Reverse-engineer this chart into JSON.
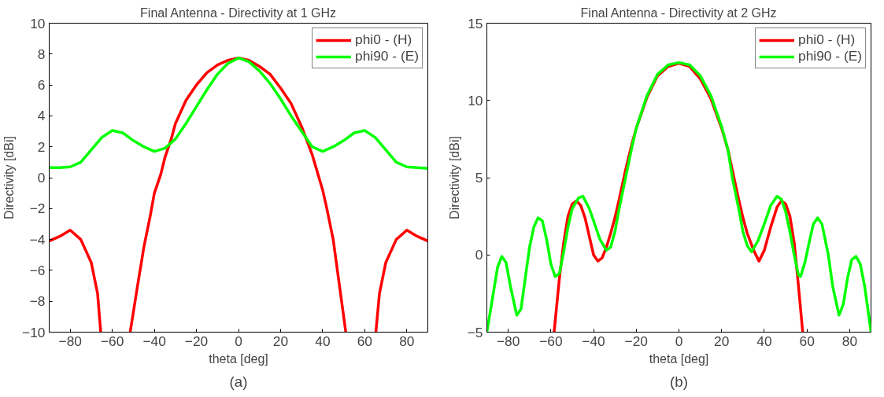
{
  "chart_data": [
    {
      "type": "line",
      "title": "Final Antenna - Directivity at 1 GHz",
      "xlabel": "theta [deg]",
      "ylabel": "Directivity [dBi]",
      "annotations": [
        "(a)"
      ],
      "xlim": [
        -90,
        90
      ],
      "xticks": [
        -80,
        -60,
        -40,
        -20,
        0,
        20,
        40,
        60,
        80
      ],
      "ylim": [
        -10,
        10
      ],
      "yticks": [
        -10,
        -8,
        -6,
        -4,
        -2,
        0,
        2,
        4,
        6,
        8,
        10
      ],
      "legend": "top right",
      "grid": false,
      "line_style": "solid",
      "marker": "none",
      "series": [
        {
          "name": "phi0 - (H)",
          "color": "#ff0000",
          "x": [
            -90,
            -85,
            -80,
            -75,
            -70,
            -67,
            -65.5,
            -60,
            -51.5,
            -48,
            -45,
            -42,
            -40,
            -37,
            -35,
            -32,
            -30,
            -25,
            -20,
            -15,
            -10,
            -5,
            0,
            5,
            10,
            15,
            20,
            25,
            30,
            35,
            40,
            42,
            45,
            48,
            51,
            60,
            65.3,
            67,
            70,
            75,
            80,
            85,
            90
          ],
          "values": [
            -4.1,
            -3.8,
            -3.4,
            -4.0,
            -5.5,
            -7.5,
            -10,
            null,
            -10,
            -7,
            -4.5,
            -2.5,
            -1.0,
            0.2,
            1.3,
            2.5,
            3.5,
            5.0,
            6.0,
            6.8,
            7.3,
            7.6,
            7.75,
            7.6,
            7.2,
            6.7,
            5.8,
            4.8,
            3.3,
            1.5,
            -0.8,
            -2,
            -4,
            -7,
            -10,
            null,
            -10,
            -7.5,
            -5.5,
            -4.0,
            -3.4,
            -3.8,
            -4.1
          ]
        },
        {
          "name": "phi90 - (E)",
          "color": "#00ff00",
          "x": [
            -90,
            -85,
            -80,
            -75,
            -70,
            -65,
            -60,
            -55,
            -50,
            -45,
            -40,
            -35,
            -30,
            -25,
            -20,
            -15,
            -10,
            -5,
            0,
            5,
            10,
            15,
            20,
            25,
            30,
            35,
            40,
            45,
            50,
            55,
            60,
            65,
            70,
            75,
            80,
            85,
            90
          ],
          "values": [
            0.65,
            0.65,
            0.7,
            1.0,
            1.8,
            2.6,
            3.05,
            2.9,
            2.4,
            2.0,
            1.7,
            1.9,
            2.5,
            3.5,
            4.6,
            5.7,
            6.7,
            7.4,
            7.75,
            7.5,
            6.9,
            6.1,
            5.1,
            4.0,
            3.0,
            2.0,
            1.7,
            2.0,
            2.4,
            2.9,
            3.05,
            2.6,
            1.8,
            1.0,
            0.7,
            0.65,
            0.6
          ]
        }
      ]
    },
    {
      "type": "line",
      "title": "Final Antenna - Directivity at 2 GHz",
      "xlabel": "theta [deg]",
      "ylabel": "Directivity [dBi]",
      "annotations": [
        "(b)"
      ],
      "xlim": [
        -90,
        90
      ],
      "xticks": [
        -80,
        -60,
        -40,
        -20,
        0,
        20,
        40,
        60,
        80
      ],
      "ylim": [
        -5,
        15
      ],
      "yticks": [
        -5,
        0,
        5,
        10,
        15
      ],
      "legend": "top right",
      "grid": false,
      "line_style": "solid",
      "marker": "none",
      "series": [
        {
          "name": "phi0 - (H)",
          "color": "#ff0000",
          "x": [
            -58.5,
            -56,
            -54,
            -52,
            -50,
            -48,
            -46,
            -44,
            -42,
            -40,
            -38,
            -36,
            -34,
            -32,
            -30,
            -28,
            -25,
            -22,
            -20,
            -15,
            -10,
            -5,
            0,
            5,
            10,
            15,
            20,
            23,
            25,
            28,
            30,
            32,
            35,
            37.5,
            40,
            43,
            46,
            48,
            50,
            52,
            54,
            56,
            58
          ],
          "values": [
            -5,
            -1.5,
            0.8,
            2.5,
            3.3,
            3.5,
            3.2,
            2.4,
            1.2,
            0.0,
            -0.4,
            -0.2,
            0.5,
            1.4,
            2.4,
            3.6,
            5.5,
            7.2,
            8.2,
            10.2,
            11.6,
            12.2,
            12.4,
            12.2,
            11.4,
            10.1,
            8.2,
            6.8,
            5.5,
            3.6,
            2.4,
            1.4,
            0.3,
            -0.4,
            0.3,
            1.8,
            3.1,
            3.5,
            3.3,
            2.5,
            0.8,
            -2.0,
            -5
          ]
        },
        {
          "name": "phi90 - (E)",
          "color": "#00ff00",
          "x": [
            -90,
            -87,
            -85,
            -83,
            -81,
            -79,
            -76,
            -74,
            -72,
            -70,
            -68,
            -66,
            -64,
            -62,
            -60,
            -58,
            -56,
            -54,
            -52,
            -50,
            -47,
            -45,
            -42,
            -40,
            -37,
            -34,
            -32,
            -30,
            -28,
            -25,
            -22,
            -20,
            -15,
            -10,
            -5,
            0,
            5,
            10,
            15,
            20,
            23,
            25,
            28,
            30,
            32,
            34,
            37,
            40,
            43,
            46,
            48,
            50,
            52,
            54,
            56,
            57,
            59,
            61,
            63,
            65,
            67,
            70,
            72,
            75,
            77,
            79,
            81,
            83,
            85,
            87,
            89,
            90
          ],
          "values": [
            -5,
            -2.5,
            -0.8,
            -0.1,
            -0.5,
            -2.0,
            -3.9,
            -3.5,
            -1.5,
            0.5,
            1.8,
            2.4,
            2.2,
            1.0,
            -0.6,
            -1.4,
            -1.2,
            0.2,
            1.8,
            3.0,
            3.7,
            3.8,
            3.0,
            2.2,
            1.0,
            0.3,
            0.5,
            1.5,
            3.0,
            5.0,
            7.0,
            8.2,
            10.3,
            11.7,
            12.3,
            12.45,
            12.3,
            11.6,
            10.3,
            8.3,
            6.8,
            5.0,
            3.0,
            1.5,
            0.6,
            0.2,
            0.9,
            2.0,
            3.2,
            3.8,
            3.6,
            2.8,
            1.5,
            0.0,
            -1.3,
            -1.4,
            -0.5,
            0.8,
            2.0,
            2.4,
            2.0,
            0.0,
            -2.0,
            -3.9,
            -3.2,
            -1.5,
            -0.3,
            -0.1,
            -0.6,
            -2.0,
            -4.0,
            -5
          ]
        }
      ]
    }
  ]
}
